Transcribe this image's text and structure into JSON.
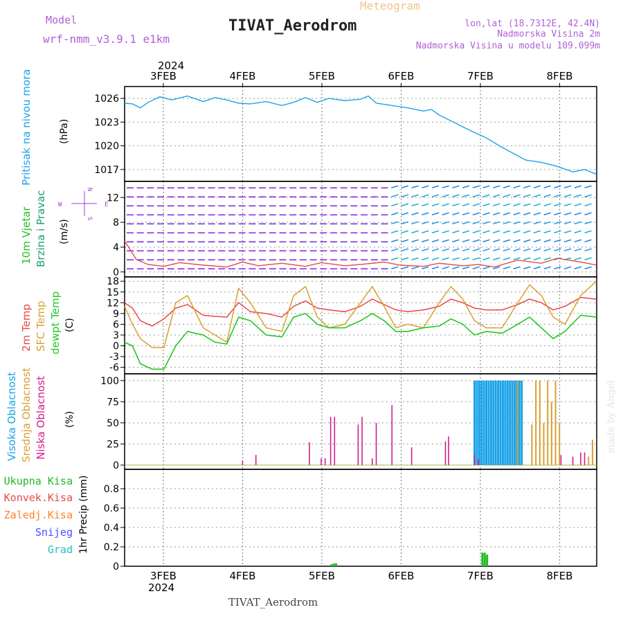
{
  "header": {
    "model_label": "Model",
    "model_name": "wrf-nmm_v3.9.1  e1km",
    "title": "TIVAT_Aerodrom",
    "subtitle": "Meteogram",
    "lonlat": "lon,lat (18.7312E, 42.4N)",
    "elev": "Nadmorska Visina 2m",
    "model_elev": "Nadmorska Visina u modelu 109.099m",
    "year": "2024",
    "footer": "TIVAT_Aerodrom",
    "watermark": "made by Angel"
  },
  "colors": {
    "pressure": "#1aa3e8",
    "wind_label": "#22c022",
    "wind_label2": "#1a9e6a",
    "temp2m": "#e84848",
    "sfc": "#d8a030",
    "dew": "#22c822",
    "high_cloud": "#1aa3e8",
    "mid_cloud": "#d8a030",
    "low_cloud": "#d01e8c",
    "total_precip": "#22b822",
    "conv_precip": "#e84848",
    "frz_precip": "#ff7f27",
    "snow": "#4b4bff",
    "graupel": "#20c0c0",
    "purple": "#a040d0"
  },
  "chart_data": [
    {
      "type": "line",
      "panel": "pressure",
      "ylabel_main": "Pritisak na nivou mora",
      "ylabel_unit": "(hPa)",
      "x_tick_labels": [
        "3FEB",
        "4FEB",
        "5FEB",
        "6FEB",
        "7FEB",
        "8FEB"
      ],
      "ylim": [
        1015.5,
        1027.5
      ],
      "yticks": [
        1017,
        1020,
        1023,
        1026
      ],
      "x": [
        0,
        0.1,
        0.2,
        0.3,
        0.45,
        0.6,
        0.8,
        1.0,
        1.15,
        1.3,
        1.45,
        1.6,
        1.8,
        2.0,
        2.15,
        2.3,
        2.45,
        2.6,
        2.8,
        3.0,
        3.1,
        3.2,
        3.4,
        3.6,
        3.8,
        3.9,
        4.0,
        4.2,
        4.4,
        4.6,
        4.8,
        4.95,
        5.1,
        5.3,
        5.5,
        5.7,
        5.85,
        6.0
      ],
      "series": [
        {
          "values": [
            1025.4,
            1025.3,
            1024.8,
            1025.5,
            1026.2,
            1025.8,
            1026.3,
            1025.6,
            1026.1,
            1025.8,
            1025.4,
            1025.3,
            1025.6,
            1025.1,
            1025.5,
            1026.1,
            1025.5,
            1026.0,
            1025.7,
            1025.9,
            1026.3,
            1025.4,
            1025.1,
            1024.8,
            1024.4,
            1024.6,
            1023.9,
            1022.9,
            1021.9,
            1021.0,
            1019.8,
            1019.0,
            1018.2,
            1017.9,
            1017.4,
            1016.7,
            1017.0,
            1016.4
          ]
        }
      ]
    },
    {
      "type": "line",
      "panel": "wind",
      "ylabel_main": "10m Vjetar",
      "ylabel_second": "Brzina i Pravac",
      "ylabel_unit": "(m/s)",
      "compass": [
        "N",
        "W",
        "E",
        "S"
      ],
      "ylim": [
        -0.8,
        14.6
      ],
      "yticks": [
        0,
        4,
        8,
        12
      ],
      "x": [
        0,
        0.15,
        0.3,
        0.5,
        0.7,
        1.0,
        1.3,
        1.5,
        1.7,
        2.0,
        2.3,
        2.5,
        2.8,
        3.0,
        3.3,
        3.5,
        3.8,
        4.0,
        4.3,
        4.5,
        4.7,
        5.0,
        5.3,
        5.5,
        5.8,
        6.0
      ],
      "series": [
        {
          "name_hidden": "speed",
          "values": [
            5.0,
            2.0,
            1.2,
            0.9,
            1.5,
            1.1,
            0.8,
            1.6,
            1.0,
            1.4,
            0.9,
            1.5,
            1.0,
            1.2,
            1.6,
            1.1,
            0.9,
            1.4,
            1.0,
            1.2,
            0.8,
            1.9,
            1.4,
            2.2,
            1.6,
            1.1
          ]
        }
      ]
    },
    {
      "type": "line",
      "panel": "temperature",
      "ylabel_series": [
        "2m Temp",
        "SFC Temp",
        "dewpt Temp"
      ],
      "ylabel_unit": "(C)",
      "ylim": [
        -7.8,
        19.2
      ],
      "yticks": [
        -6,
        -3,
        0,
        3,
        6,
        9,
        12,
        15,
        18
      ],
      "x": [
        0,
        0.1,
        0.2,
        0.35,
        0.5,
        0.65,
        0.8,
        1.0,
        1.15,
        1.3,
        1.45,
        1.6,
        1.8,
        2.0,
        2.15,
        2.3,
        2.45,
        2.6,
        2.8,
        3.0,
        3.15,
        3.3,
        3.45,
        3.6,
        3.8,
        4.0,
        4.15,
        4.3,
        4.45,
        4.6,
        4.8,
        5.0,
        5.15,
        5.3,
        5.45,
        5.6,
        5.8,
        6.0
      ],
      "series": [
        {
          "values": [
            12,
            10.5,
            7,
            5.5,
            7.5,
            10.5,
            11.5,
            8.5,
            8.2,
            8.0,
            12,
            9.5,
            9,
            8,
            11,
            12.5,
            10.5,
            10,
            9.5,
            11,
            13,
            11.5,
            10,
            9.5,
            10,
            11,
            13,
            12,
            10.5,
            10,
            10,
            11.5,
            13,
            12,
            10,
            11,
            13.5,
            13
          ]
        },
        {
          "values": [
            11,
            6,
            2,
            -0.5,
            -0.5,
            12,
            14,
            5,
            3,
            1,
            16,
            12,
            5,
            4,
            14,
            16.5,
            8,
            5,
            6,
            12,
            16.5,
            11,
            5,
            6,
            5,
            12,
            16.5,
            13,
            7,
            5,
            5,
            12,
            17,
            14,
            8,
            6,
            14,
            18
          ]
        },
        {
          "values": [
            1,
            0,
            -5,
            -6.5,
            -6.5,
            0,
            4,
            3,
            1,
            0.5,
            8,
            7,
            3,
            2.5,
            8,
            9,
            6,
            5,
            5,
            7,
            9,
            7,
            4,
            4,
            5,
            5.5,
            7.5,
            6,
            3,
            4,
            3.5,
            6,
            8,
            5,
            2,
            4,
            8.5,
            8
          ]
        }
      ]
    },
    {
      "type": "bar",
      "panel": "cloud",
      "ylabel_series": [
        "Visoka Oblacnost",
        "Srednja Oblacnost",
        "Niska Oblacnost"
      ],
      "ylabel_unit": "(%)",
      "ylim": [
        -5,
        108
      ],
      "yticks": [
        0,
        25,
        50,
        75,
        100
      ],
      "series": [
        {
          "name": "Visoka Oblacnost",
          "x": [
            4.45,
            4.48,
            4.51,
            4.54,
            4.57,
            4.6,
            4.63,
            4.66,
            4.69,
            4.72,
            4.75,
            4.78,
            4.81,
            4.84,
            4.87,
            4.9,
            4.93,
            4.96,
            4.99,
            5.02,
            5.05
          ],
          "values": [
            100,
            100,
            100,
            100,
            100,
            100,
            100,
            100,
            100,
            100,
            100,
            100,
            100,
            100,
            100,
            100,
            100,
            100,
            100,
            100,
            100
          ]
        },
        {
          "name": "Srednja Oblacnost",
          "x": [
            5.0,
            5.18,
            5.23,
            5.28,
            5.33,
            5.38,
            5.43,
            5.48,
            5.53,
            5.9,
            5.95
          ],
          "values": [
            100,
            48,
            100,
            100,
            50,
            100,
            75,
            100,
            50,
            10,
            30
          ]
        },
        {
          "name": "Niska Oblacnost",
          "x": [
            1.5,
            1.67,
            2.35,
            2.5,
            2.55,
            2.62,
            2.67,
            2.97,
            3.02,
            3.15,
            3.2,
            3.4,
            3.65,
            4.08,
            4.12,
            4.45,
            4.5,
            5.55,
            5.7,
            5.8,
            5.85
          ],
          "values": [
            5,
            12,
            27,
            8,
            8,
            57,
            57,
            48,
            57,
            8,
            50,
            71,
            21,
            28,
            34,
            12,
            7,
            12,
            10,
            15,
            15
          ]
        }
      ]
    },
    {
      "type": "bar",
      "panel": "precip",
      "ylabel_series": [
        "Ukupna Kisa",
        "Konvek.Kisa",
        "Zaledj.Kisa",
        "Snijeg",
        "Grad"
      ],
      "ylabel_unit": "1hr Precip (mm)",
      "ylim": [
        0,
        1.0
      ],
      "yticks": [
        0,
        0.2,
        0.4,
        0.6,
        0.8
      ],
      "x_tick_labels": [
        "3FEB",
        "4FEB",
        "5FEB",
        "6FEB",
        "7FEB",
        "8FEB"
      ],
      "series": [
        {
          "name": "Ukupna Kisa",
          "x": [
            2.63,
            2.66,
            2.69,
            4.55,
            4.58,
            4.61
          ],
          "values": [
            0.02,
            0.03,
            0.03,
            0.14,
            0.14,
            0.12
          ]
        }
      ]
    }
  ]
}
